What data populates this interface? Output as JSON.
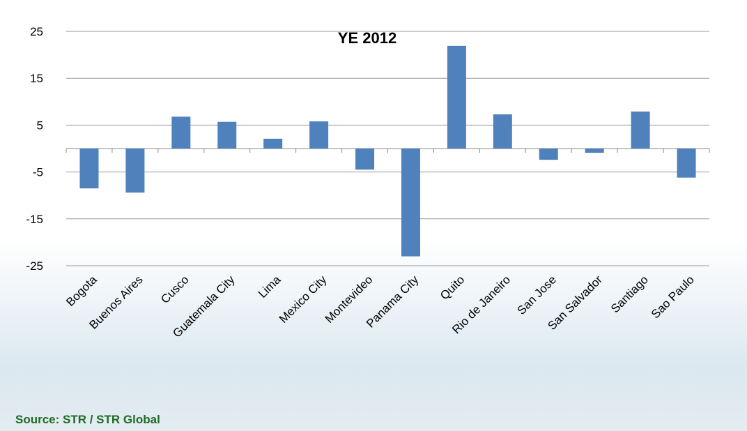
{
  "chart_data": {
    "type": "bar",
    "title": "YE 2012",
    "categories": [
      "Bogota",
      "Buenos Aires",
      "Cusco",
      "Guatemala City",
      "Lima",
      "Mexico City",
      "Montevideo",
      "Panama City",
      "Quito",
      "Rio de Janeiro",
      "San Jose",
      "San Salvador",
      "Santiago",
      "Sao Paulo"
    ],
    "values": [
      -8.5,
      -9.4,
      6.8,
      5.7,
      2.1,
      5.8,
      -4.5,
      -23,
      21.9,
      7.3,
      -2.4,
      -0.9,
      7.9,
      -6.2
    ],
    "color": "#4f81bd",
    "ylim": [
      -25,
      25
    ],
    "yticks": [
      25,
      15,
      5,
      -5,
      -15,
      -25
    ],
    "grid": true,
    "source": "Source: STR / STR Global"
  }
}
